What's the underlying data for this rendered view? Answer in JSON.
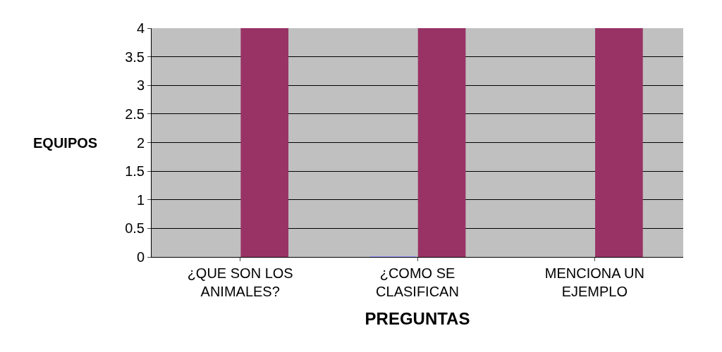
{
  "chart_data": {
    "type": "bar",
    "xlabel": "PREGUNTAS",
    "ylabel": "EQUIPOS",
    "categories": [
      "¿QUE SON LOS ANIMALES?",
      "¿COMO SE CLASIFICAN",
      "MENCIONA UN EJEMPLO"
    ],
    "series": [
      {
        "color": "#9999ff",
        "values": [
          null,
          0,
          null
        ]
      },
      {
        "color": "#993366",
        "values": [
          4,
          4,
          4
        ]
      }
    ],
    "ylim": [
      0,
      4
    ],
    "yticks": [
      0,
      0.5,
      1,
      1.5,
      2,
      2.5,
      3,
      3.5,
      4
    ],
    "grid": "y"
  }
}
